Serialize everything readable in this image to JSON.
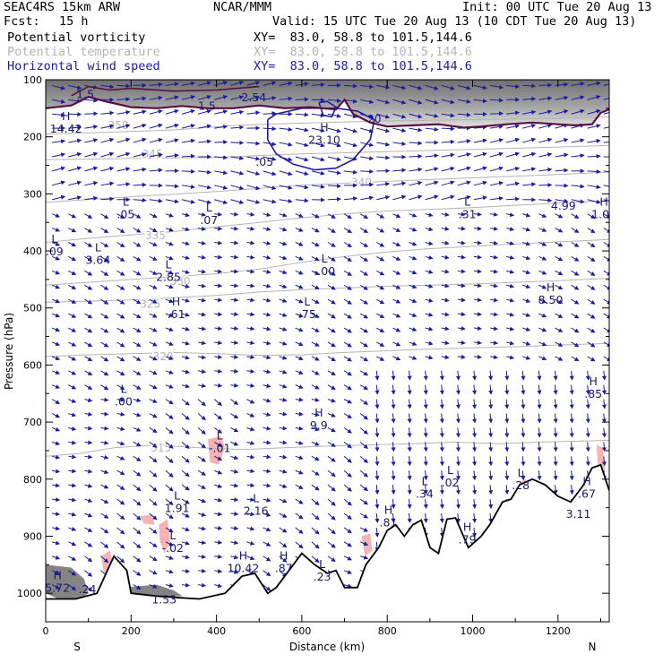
{
  "header": {
    "project": "SEAC4RS 15km ARW",
    "org": "NCAR/MMM",
    "init": "Init: 00 UTC Tue 20 Aug 13",
    "fcst_label": "Fcst:",
    "fcst_value": "15 h",
    "valid": "Valid: 15 UTC Tue 20 Aug 13 (10 CDT Tue 20 Aug 13)",
    "fields": [
      {
        "name": "Potential vorticity",
        "xy": "XY=  83.0, 58.8 to 101.5,144.6",
        "color": "#000000"
      },
      {
        "name": "Potential temperature",
        "xy": "XY=  83.0, 58.8 to 101.5,144.6",
        "color": "#b4b4b4"
      },
      {
        "name": "Horizontal wind speed",
        "xy": "XY=  83.0, 58.8 to 101.5,144.6",
        "color": "#1c1ca0"
      }
    ]
  },
  "chart_data": {
    "type": "cross-section",
    "xlabel": "Distance (km)",
    "ylabel": "Pressure (hPa)",
    "xlim": [
      0,
      1320
    ],
    "ylim": [
      1050,
      100
    ],
    "x_ticks": [
      0,
      200,
      400,
      600,
      800,
      1000,
      1200
    ],
    "y_ticks": [
      100,
      200,
      300,
      400,
      500,
      600,
      700,
      800,
      900,
      1000
    ],
    "endpoint_labels": {
      "left": "S",
      "right": "N"
    },
    "colors": {
      "theta": "#b4b4b4",
      "wind": "#1c1ca0",
      "pv_contour": "#5a1040",
      "terrain": "#000000",
      "pv_shade_light": "#f5b4b4",
      "pv_shade_dark": "#6e6e6e"
    },
    "theta_isentropes": [
      {
        "value": "315",
        "points": [
          [
            0,
            760
          ],
          [
            80,
            755
          ],
          [
            160,
            745
          ],
          [
            260,
            740
          ],
          [
            360,
            745
          ],
          [
            460,
            748
          ],
          [
            560,
            745
          ],
          [
            660,
            742
          ],
          [
            760,
            740
          ],
          [
            860,
            738
          ],
          [
            960,
            735
          ],
          [
            1060,
            738
          ],
          [
            1160,
            735
          ],
          [
            1320,
            732
          ]
        ],
        "label_at": [
          270,
          745
        ]
      },
      {
        "value": "320",
        "points": [
          [
            0,
            585
          ],
          [
            100,
            582
          ],
          [
            200,
            580
          ],
          [
            300,
            578
          ],
          [
            400,
            580
          ],
          [
            500,
            583
          ],
          [
            600,
            582
          ],
          [
            700,
            578
          ],
          [
            800,
            575
          ],
          [
            900,
            572
          ],
          [
            1000,
            570
          ],
          [
            1100,
            568
          ],
          [
            1200,
            565
          ],
          [
            1320,
            562
          ]
        ],
        "label_at": [
          275,
          585
        ]
      },
      {
        "value": "325",
        "points": [
          [
            0,
            490
          ],
          [
            100,
            488
          ],
          [
            200,
            486
          ],
          [
            300,
            482
          ],
          [
            400,
            478
          ],
          [
            500,
            472
          ],
          [
            600,
            468
          ],
          [
            700,
            465
          ],
          [
            800,
            462
          ],
          [
            900,
            460
          ],
          [
            1000,
            458
          ],
          [
            1100,
            455
          ],
          [
            1200,
            452
          ],
          [
            1320,
            448
          ]
        ],
        "label_at": [
          245,
          493
        ]
      },
      {
        "value": "330",
        "points": [
          [
            0,
            460
          ],
          [
            100,
            455
          ],
          [
            200,
            450
          ],
          [
            300,
            445
          ],
          [
            400,
            440
          ],
          [
            500,
            432
          ],
          [
            600,
            420
          ],
          [
            700,
            410
          ],
          [
            800,
            402
          ],
          [
            900,
            396
          ],
          [
            1000,
            392
          ],
          [
            1100,
            388
          ],
          [
            1200,
            384
          ],
          [
            1320,
            380
          ]
        ],
        "label_at": [
          315,
          453
        ]
      },
      {
        "value": "335",
        "points": [
          [
            0,
            385
          ],
          [
            100,
            378
          ],
          [
            200,
            372
          ],
          [
            300,
            366
          ],
          [
            400,
            358
          ],
          [
            500,
            350
          ],
          [
            600,
            342
          ],
          [
            700,
            335
          ],
          [
            800,
            330
          ],
          [
            900,
            327
          ],
          [
            1000,
            324
          ],
          [
            1100,
            320
          ],
          [
            1200,
            316
          ],
          [
            1320,
            312
          ]
        ],
        "label_at": [
          257,
          373
        ]
      },
      {
        "value": "340",
        "points": [
          [
            0,
            315
          ],
          [
            200,
            305
          ],
          [
            400,
            296
          ],
          [
            600,
            285
          ],
          [
            800,
            278
          ],
          [
            1000,
            272
          ],
          [
            1200,
            266
          ],
          [
            1320,
            262
          ]
        ],
        "label_at": [
          740,
          280
        ]
      },
      {
        "value": "345",
        "points": [
          [
            0,
            240
          ],
          [
            200,
            238
          ],
          [
            400,
            236
          ],
          [
            600,
            230
          ],
          [
            800,
            226
          ],
          [
            1000,
            222
          ],
          [
            1200,
            218
          ],
          [
            1320,
            215
          ]
        ],
        "label_at": [
          250,
          230
        ]
      },
      {
        "value": "350",
        "points": [
          [
            0,
            195
          ],
          [
            150,
            192
          ],
          [
            300,
            188
          ],
          [
            450,
            180
          ],
          [
            600,
            176
          ],
          [
            800,
            172
          ],
          [
            1000,
            170
          ],
          [
            1200,
            168
          ],
          [
            1320,
            165
          ]
        ],
        "label_at": [
          170,
          180
        ]
      }
    ],
    "tropopause_pv_contour": [
      [
        0,
        150
      ],
      [
        60,
        145
      ],
      [
        100,
        130
      ],
      [
        140,
        138
      ],
      [
        200,
        148
      ],
      [
        260,
        150
      ],
      [
        320,
        146
      ],
      [
        380,
        150
      ],
      [
        440,
        150
      ],
      [
        500,
        145
      ],
      [
        560,
        150
      ],
      [
        620,
        148
      ],
      [
        680,
        152
      ],
      [
        700,
        135
      ],
      [
        720,
        160
      ],
      [
        760,
        175
      ],
      [
        800,
        182
      ],
      [
        860,
        180
      ],
      [
        920,
        178
      ],
      [
        980,
        184
      ],
      [
        1020,
        182
      ],
      [
        1080,
        178
      ],
      [
        1140,
        175
      ],
      [
        1200,
        178
      ],
      [
        1240,
        180
      ],
      [
        1280,
        178
      ],
      [
        1300,
        158
      ],
      [
        1320,
        152
      ]
    ],
    "wind_speed_contours": [
      {
        "label": "20",
        "points": [
          [
            520,
            170
          ],
          [
            540,
            160
          ],
          [
            600,
            150
          ],
          [
            680,
            150
          ],
          [
            730,
            155
          ],
          [
            770,
            170
          ],
          [
            760,
            205
          ],
          [
            720,
            240
          ],
          [
            680,
            255
          ],
          [
            630,
            258
          ],
          [
            580,
            248
          ],
          [
            540,
            230
          ],
          [
            520,
            205
          ],
          [
            520,
            170
          ]
        ]
      },
      {
        "label": "20",
        "points": [
          [
            640,
            140
          ],
          [
            660,
            138
          ],
          [
            680,
            148
          ],
          [
            670,
            165
          ],
          [
            650,
            162
          ],
          [
            640,
            140
          ]
        ]
      }
    ],
    "terrain": [
      [
        0,
        1010
      ],
      [
        70,
        1010
      ],
      [
        120,
        1000
      ],
      [
        160,
        935
      ],
      [
        190,
        960
      ],
      [
        200,
        1000
      ],
      [
        260,
        1005
      ],
      [
        320,
        1008
      ],
      [
        360,
        1010
      ],
      [
        420,
        1000
      ],
      [
        460,
        970
      ],
      [
        490,
        965
      ],
      [
        520,
        1000
      ],
      [
        540,
        990
      ],
      [
        570,
        960
      ],
      [
        600,
        930
      ],
      [
        630,
        950
      ],
      [
        660,
        965
      ],
      [
        680,
        960
      ],
      [
        700,
        990
      ],
      [
        730,
        990
      ],
      [
        750,
        950
      ],
      [
        780,
        920
      ],
      [
        800,
        890
      ],
      [
        820,
        880
      ],
      [
        840,
        900
      ],
      [
        860,
        880
      ],
      [
        880,
        872
      ],
      [
        900,
        920
      ],
      [
        920,
        930
      ],
      [
        940,
        870
      ],
      [
        960,
        868
      ],
      [
        990,
        920
      ],
      [
        1020,
        900
      ],
      [
        1040,
        880
      ],
      [
        1070,
        840
      ],
      [
        1090,
        835
      ],
      [
        1110,
        810
      ],
      [
        1140,
        800
      ],
      [
        1170,
        810
      ],
      [
        1200,
        830
      ],
      [
        1230,
        840
      ],
      [
        1260,
        810
      ],
      [
        1280,
        780
      ],
      [
        1300,
        775
      ],
      [
        1320,
        820
      ]
    ],
    "pv_shading_light": [
      [
        [
          380,
          730
        ],
        [
          410,
          725
        ],
        [
          420,
          745
        ],
        [
          405,
          775
        ],
        [
          385,
          770
        ],
        [
          380,
          730
        ]
      ],
      [
        [
          130,
          935
        ],
        [
          150,
          925
        ],
        [
          160,
          955
        ],
        [
          150,
          975
        ],
        [
          135,
          960
        ],
        [
          130,
          935
        ]
      ],
      [
        [
          265,
          880
        ],
        [
          285,
          870
        ],
        [
          292,
          910
        ],
        [
          278,
          930
        ],
        [
          268,
          910
        ],
        [
          265,
          880
        ]
      ],
      [
        [
          220,
          865
        ],
        [
          250,
          862
        ],
        [
          255,
          880
        ],
        [
          230,
          878
        ],
        [
          220,
          865
        ]
      ],
      [
        [
          740,
          900
        ],
        [
          760,
          895
        ],
        [
          765,
          925
        ],
        [
          748,
          935
        ],
        [
          740,
          900
        ]
      ],
      [
        [
          1290,
          740
        ],
        [
          1305,
          745
        ],
        [
          1310,
          790
        ],
        [
          1295,
          790
        ],
        [
          1290,
          740
        ]
      ],
      [
        [
          1110,
          805
        ],
        [
          1125,
          800
        ],
        [
          1130,
          820
        ],
        [
          1115,
          825
        ],
        [
          1110,
          805
        ]
      ]
    ],
    "pv_shading_dark": [
      [
        [
          0,
          950
        ],
        [
          60,
          955
        ],
        [
          90,
          975
        ],
        [
          100,
          1000
        ],
        [
          80,
          1010
        ],
        [
          30,
          1010
        ],
        [
          0,
          1000
        ],
        [
          0,
          950
        ]
      ],
      [
        [
          180,
          990
        ],
        [
          260,
          985
        ],
        [
          300,
          995
        ],
        [
          320,
          1005
        ],
        [
          200,
          1008
        ],
        [
          180,
          990
        ]
      ]
    ],
    "hl_markers": [
      {
        "letter": "H",
        "value": "14.42",
        "x": 35,
        "y": 180
      },
      {
        "letter": "H",
        "value": "23.10",
        "x": 640,
        "y": 200
      },
      {
        "letter": "L",
        "value": ".05",
        "x": 175,
        "y": 330
      },
      {
        "letter": "L",
        "value": ".07",
        "x": 370,
        "y": 340
      },
      {
        "letter": "L",
        "value": ".09",
        "x": 8,
        "y": 395
      },
      {
        "letter": "L",
        "value": "3.64",
        "x": 110,
        "y": 410
      },
      {
        "letter": "L",
        "value": "2.85",
        "x": 275,
        "y": 440
      },
      {
        "letter": "L",
        "value": "-.00",
        "x": 640,
        "y": 430
      },
      {
        "letter": "L",
        "value": ".31",
        "x": 975,
        "y": 330
      },
      {
        "letter": "",
        "value": "4.99",
        "x": 1200,
        "y": 315
      },
      {
        "letter": "H",
        "value": "1.00",
        "x": 1295,
        "y": 330
      },
      {
        "letter": "H",
        "value": "8.50",
        "x": 1170,
        "y": 480
      },
      {
        "letter": "H",
        "value": ".61",
        "x": 293,
        "y": 505
      },
      {
        "letter": "L",
        "value": ".75",
        "x": 600,
        "y": 505
      },
      {
        "letter": "L",
        "value": ".00",
        "x": 170,
        "y": 658
      },
      {
        "letter": "H",
        "value": ".85",
        "x": 1270,
        "y": 645
      },
      {
        "letter": "H",
        "value": "9.9",
        "x": 627,
        "y": 700
      },
      {
        "letter": "L",
        "value": "-.01",
        "x": 395,
        "y": 740
      },
      {
        "letter": "L",
        "value": ".34",
        "x": 875,
        "y": 820
      },
      {
        "letter": "L",
        "value": ".02",
        "x": 935,
        "y": 800
      },
      {
        "letter": "L",
        "value": ".28",
        "x": 1100,
        "y": 805
      },
      {
        "letter": "H",
        "value": ".67",
        "x": 1255,
        "y": 820
      },
      {
        "letter": "",
        "value": "3.11",
        "x": 1235,
        "y": 855
      },
      {
        "letter": "L",
        "value": "1.91",
        "x": 295,
        "y": 845
      },
      {
        "letter": "L",
        "value": "2.16",
        "x": 480,
        "y": 850
      },
      {
        "letter": "H",
        "value": ".81",
        "x": 790,
        "y": 870
      },
      {
        "letter": "H",
        "value": ".79",
        "x": 975,
        "y": 900
      },
      {
        "letter": "L",
        "value": "-.02",
        "x": 285,
        "y": 915
      },
      {
        "letter": "H",
        "value": "10.42",
        "x": 450,
        "y": 950
      },
      {
        "letter": "H",
        "value": ".87",
        "x": 545,
        "y": 950
      },
      {
        "letter": "L",
        "value": ".23",
        "x": 635,
        "y": 965
      },
      {
        "letter": "H",
        "value": "5.72",
        "x": 15,
        "y": 985
      },
      {
        "letter": "",
        "value": ".24",
        "x": 85,
        "y": 987
      },
      {
        "letter": "",
        "value": "1.53",
        "x": 265,
        "y": 1005
      },
      {
        "letter": "",
        "value": "1.5",
        "x": 365,
        "y": 140
      },
      {
        "letter": "",
        "value": "2.54",
        "x": 475,
        "y": 125
      },
      {
        "letter": "",
        "value": "1.5",
        "x": 80,
        "y": 120
      },
      {
        "letter": "",
        "value": ".05",
        "x": 500,
        "y": 238
      }
    ]
  }
}
